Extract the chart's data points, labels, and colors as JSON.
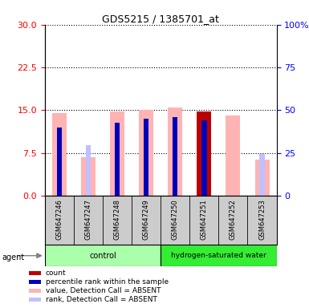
{
  "title": "GDS5215 / 1385701_at",
  "samples": [
    "GSM647246",
    "GSM647247",
    "GSM647248",
    "GSM647249",
    "GSM647250",
    "GSM647251",
    "GSM647252",
    "GSM647253"
  ],
  "ylim_left": [
    0,
    30
  ],
  "ylim_right": [
    0,
    100
  ],
  "yticks_left": [
    0,
    7.5,
    15,
    22.5,
    30
  ],
  "yticks_right": [
    0,
    25,
    50,
    75,
    100
  ],
  "yticklabels_right": [
    "0",
    "25",
    "50",
    "75",
    "100%"
  ],
  "absent_value_bars": [
    14.5,
    6.8,
    14.8,
    15.0,
    15.4,
    0.0,
    14.1,
    6.3
  ],
  "absent_rank_bars": [
    0.0,
    8.8,
    0.0,
    0.0,
    0.0,
    0.0,
    0.0,
    7.3
  ],
  "count_bars": [
    0.0,
    0.0,
    0.0,
    0.0,
    0.0,
    14.8,
    0.0,
    0.0
  ],
  "pct_rank_bars": [
    12.0,
    0.0,
    12.8,
    13.5,
    13.8,
    13.2,
    0.0,
    0.0
  ],
  "absent_value_color": "#ffb3b3",
  "absent_rank_color": "#c0c0ff",
  "count_color": "#bb0000",
  "pct_rank_color": "#0000bb",
  "bar_width": 0.5,
  "control_color": "#aaffaa",
  "hsw_color": "#33ee33",
  "sample_box_color": "#cccccc"
}
